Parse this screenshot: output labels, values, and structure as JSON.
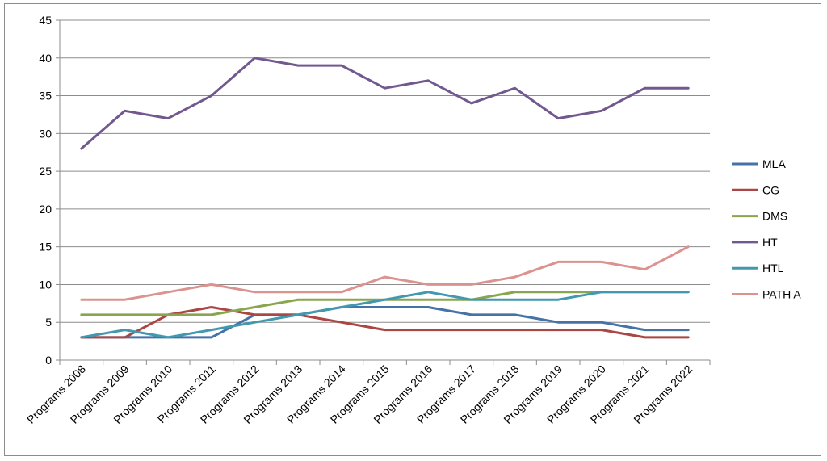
{
  "chart_data": {
    "type": "line",
    "title": "",
    "xlabel": "",
    "ylabel": "",
    "categories": [
      "Programs 2008",
      "Programs 2009",
      "Programs 2010",
      "Programs 2011",
      "Programs 2012",
      "Programs 2013",
      "Programs 2014",
      "Programs 2015",
      "Programs 2016",
      "Programs 2017",
      "Programs 2018",
      "Programs 2019",
      "Programs 2020",
      "Programs 2021",
      "Programs 2022"
    ],
    "ylim": [
      0,
      45
    ],
    "yticks": [
      "0",
      "5",
      "10",
      "15",
      "20",
      "25",
      "30",
      "35",
      "40",
      "45"
    ],
    "grid": "horizontal",
    "legend_position": "right",
    "series": [
      {
        "name": "MLA",
        "color": "#4572a7",
        "values": [
          3,
          3,
          3,
          3,
          6,
          6,
          7,
          7,
          7,
          6,
          6,
          5,
          5,
          4,
          4
        ]
      },
      {
        "name": "CG",
        "color": "#aa4643",
        "values": [
          3,
          3,
          6,
          7,
          6,
          6,
          5,
          4,
          4,
          4,
          4,
          4,
          4,
          3,
          3
        ]
      },
      {
        "name": "DMS",
        "color": "#89a54e",
        "values": [
          6,
          6,
          6,
          6,
          7,
          8,
          8,
          8,
          8,
          8,
          9,
          9,
          9,
          9,
          9
        ]
      },
      {
        "name": "HT",
        "color": "#71588f",
        "values": [
          28,
          33,
          32,
          35,
          40,
          39,
          39,
          36,
          37,
          34,
          36,
          32,
          33,
          36,
          36
        ]
      },
      {
        "name": "HTL",
        "color": "#4198af",
        "values": [
          3,
          4,
          3,
          4,
          5,
          6,
          7,
          8,
          9,
          8,
          8,
          8,
          9,
          9,
          9
        ]
      },
      {
        "name": "PATH A",
        "color": "#db9390",
        "values": [
          8,
          8,
          9,
          10,
          9,
          9,
          9,
          11,
          10,
          10,
          11,
          13,
          13,
          12,
          15
        ]
      }
    ]
  }
}
